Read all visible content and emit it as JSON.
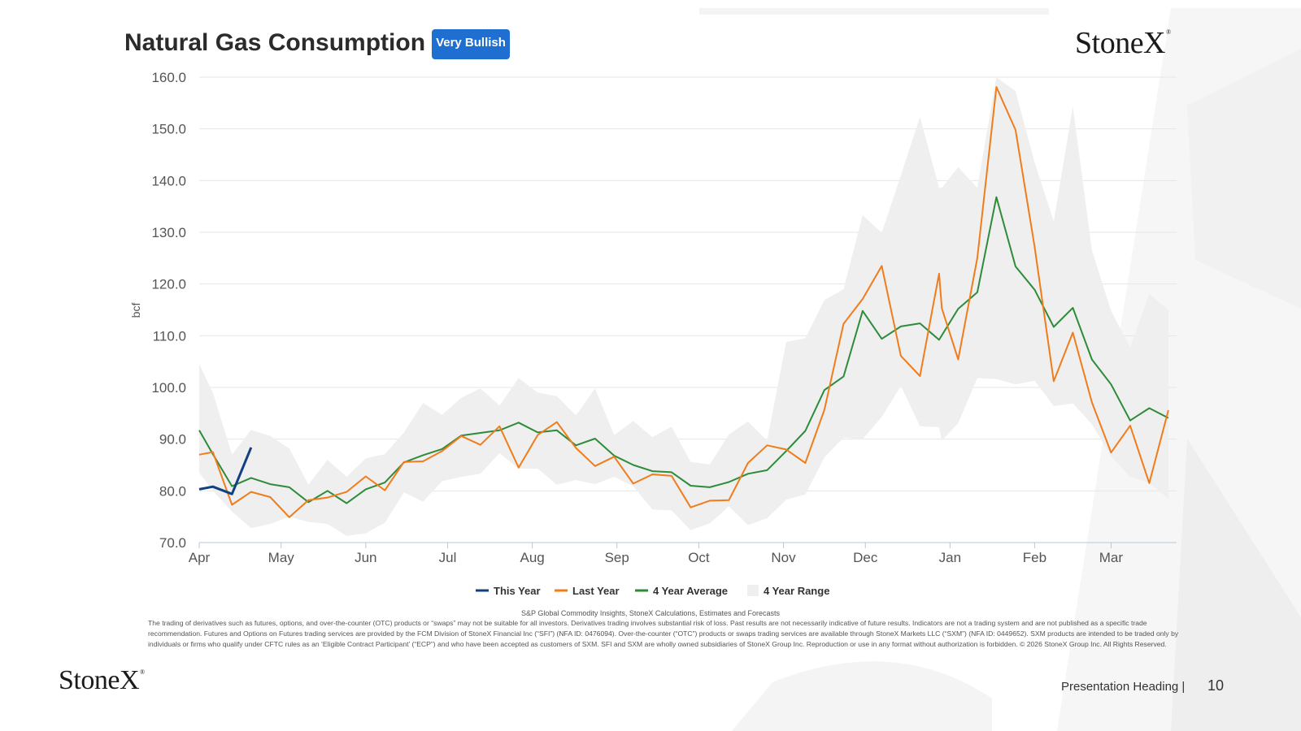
{
  "header": {
    "title": "Natural Gas Consumption",
    "badge": "Very Bullish",
    "logo": "StoneX",
    "logo_mark": "®"
  },
  "colors": {
    "this_year": "#123f80",
    "last_year": "#f07c1c",
    "avg": "#2e8b3a",
    "range": "#eeefee",
    "badge": "#1f6fd1"
  },
  "chart_data": {
    "type": "line",
    "ylabel": "bcf",
    "xlabel": "",
    "ylim": [
      70,
      160
    ],
    "yticks": [
      "70.0",
      "80.0",
      "90.0",
      "100.0",
      "110.0",
      "120.0",
      "130.0",
      "140.0",
      "150.0",
      "160.0"
    ],
    "x_domain": [
      "2025-04-01",
      "2026-03-25"
    ],
    "x_ticks": [
      {
        "label": "Apr",
        "date": "2025-04-01"
      },
      {
        "label": "May",
        "date": "2025-05-01"
      },
      {
        "label": "Jun",
        "date": "2025-06-01"
      },
      {
        "label": "Jul",
        "date": "2025-07-01"
      },
      {
        "label": "Aug",
        "date": "2025-08-01"
      },
      {
        "label": "Sep",
        "date": "2025-09-01"
      },
      {
        "label": "Oct",
        "date": "2025-10-01"
      },
      {
        "label": "Nov",
        "date": "2025-11-01"
      },
      {
        "label": "Dec",
        "date": "2025-12-01"
      },
      {
        "label": "Jan",
        "date": "2026-01-01"
      },
      {
        "label": "Feb",
        "date": "2026-02-01"
      },
      {
        "label": "Mar",
        "date": "2026-03-01"
      }
    ],
    "grid": true,
    "legend_position": "bottom",
    "series": [
      {
        "name": "This Year",
        "points": [
          [
            "2025-04-01",
            80.3
          ],
          [
            "2025-04-06",
            80.8
          ],
          [
            "2025-04-13",
            79.4
          ],
          [
            "2025-04-20",
            88.4
          ]
        ]
      },
      {
        "name": "Last Year",
        "points": [
          [
            "2025-04-01",
            87.0
          ],
          [
            "2025-04-06",
            87.5
          ],
          [
            "2025-04-13",
            77.3
          ],
          [
            "2025-04-20",
            79.8
          ],
          [
            "2025-04-27",
            78.8
          ],
          [
            "2025-05-04",
            74.9
          ],
          [
            "2025-05-11",
            78.2
          ],
          [
            "2025-05-18",
            78.7
          ],
          [
            "2025-05-25",
            79.8
          ],
          [
            "2025-06-01",
            82.8
          ],
          [
            "2025-06-08",
            80.1
          ],
          [
            "2025-06-15",
            85.6
          ],
          [
            "2025-06-22",
            85.7
          ],
          [
            "2025-06-29",
            87.7
          ],
          [
            "2025-07-06",
            90.6
          ],
          [
            "2025-07-13",
            88.9
          ],
          [
            "2025-07-20",
            92.5
          ],
          [
            "2025-07-27",
            84.5
          ],
          [
            "2025-08-03",
            90.8
          ],
          [
            "2025-08-10",
            93.3
          ],
          [
            "2025-08-17",
            88.3
          ],
          [
            "2025-08-24",
            84.8
          ],
          [
            "2025-08-31",
            86.6
          ],
          [
            "2025-09-07",
            81.4
          ],
          [
            "2025-09-14",
            83.2
          ],
          [
            "2025-09-21",
            82.9
          ],
          [
            "2025-09-28",
            76.8
          ],
          [
            "2025-10-05",
            78.1
          ],
          [
            "2025-10-12",
            78.2
          ],
          [
            "2025-10-19",
            85.4
          ],
          [
            "2025-10-26",
            88.8
          ],
          [
            "2025-11-02",
            88.0
          ],
          [
            "2025-11-09",
            85.4
          ],
          [
            "2025-11-16",
            95.7
          ],
          [
            "2025-11-23",
            112.3
          ],
          [
            "2025-11-30",
            117.1
          ],
          [
            "2025-12-07",
            123.5
          ],
          [
            "2025-12-14",
            106.1
          ],
          [
            "2025-12-21",
            102.2
          ],
          [
            "2025-12-28",
            122.0
          ],
          [
            "2025-12-29",
            115.3
          ],
          [
            "2026-01-04",
            105.4
          ],
          [
            "2026-01-11",
            125.0
          ],
          [
            "2026-01-18",
            158.1
          ],
          [
            "2026-01-25",
            149.8
          ],
          [
            "2026-02-01",
            127.2
          ],
          [
            "2026-02-08",
            101.2
          ],
          [
            "2026-02-15",
            110.6
          ],
          [
            "2026-02-22",
            97.1
          ],
          [
            "2026-03-01",
            87.4
          ],
          [
            "2026-03-08",
            92.6
          ],
          [
            "2026-03-15",
            81.5
          ],
          [
            "2026-03-22",
            95.6
          ]
        ]
      },
      {
        "name": "4 Year Average",
        "points": [
          [
            "2025-04-01",
            91.7
          ],
          [
            "2025-04-06",
            87.1
          ],
          [
            "2025-04-13",
            80.9
          ],
          [
            "2025-04-20",
            82.5
          ],
          [
            "2025-04-27",
            81.3
          ],
          [
            "2025-05-04",
            80.7
          ],
          [
            "2025-05-11",
            77.8
          ],
          [
            "2025-05-18",
            80.0
          ],
          [
            "2025-05-25",
            77.6
          ],
          [
            "2025-06-01",
            80.3
          ],
          [
            "2025-06-08",
            81.6
          ],
          [
            "2025-06-15",
            85.5
          ],
          [
            "2025-06-22",
            86.9
          ],
          [
            "2025-06-29",
            88.1
          ],
          [
            "2025-07-06",
            90.7
          ],
          [
            "2025-07-13",
            91.2
          ],
          [
            "2025-07-20",
            91.7
          ],
          [
            "2025-07-27",
            93.2
          ],
          [
            "2025-08-03",
            91.3
          ],
          [
            "2025-08-10",
            91.7
          ],
          [
            "2025-08-17",
            88.8
          ],
          [
            "2025-08-24",
            90.1
          ],
          [
            "2025-08-31",
            86.8
          ],
          [
            "2025-09-07",
            85.0
          ],
          [
            "2025-09-14",
            83.8
          ],
          [
            "2025-09-21",
            83.6
          ],
          [
            "2025-09-28",
            81.0
          ],
          [
            "2025-10-05",
            80.7
          ],
          [
            "2025-10-12",
            81.7
          ],
          [
            "2025-10-19",
            83.3
          ],
          [
            "2025-10-26",
            84.0
          ],
          [
            "2025-11-02",
            87.7
          ],
          [
            "2025-11-09",
            91.6
          ],
          [
            "2025-11-16",
            99.5
          ],
          [
            "2025-11-23",
            102.1
          ],
          [
            "2025-11-30",
            114.8
          ],
          [
            "2025-12-07",
            109.4
          ],
          [
            "2025-12-14",
            111.8
          ],
          [
            "2025-12-21",
            112.4
          ],
          [
            "2025-12-28",
            109.2
          ],
          [
            "2026-01-04",
            115.2
          ],
          [
            "2026-01-11",
            118.4
          ],
          [
            "2026-01-18",
            136.8
          ],
          [
            "2026-01-25",
            123.4
          ],
          [
            "2026-02-01",
            118.9
          ],
          [
            "2026-02-08",
            111.7
          ],
          [
            "2026-02-15",
            115.4
          ],
          [
            "2026-02-22",
            105.4
          ],
          [
            "2026-03-01",
            100.6
          ],
          [
            "2026-03-08",
            93.6
          ],
          [
            "2026-03-15",
            96.0
          ],
          [
            "2026-03-22",
            94.1
          ]
        ]
      }
    ],
    "range": {
      "name": "4 Year Range",
      "points": [
        [
          "2025-04-01",
          104.5,
          83.5
        ],
        [
          "2025-04-06",
          99.0,
          80.0
        ],
        [
          "2025-04-13",
          87.0,
          76.0
        ],
        [
          "2025-04-20",
          91.8,
          72.8
        ],
        [
          "2025-04-27",
          90.6,
          73.6
        ],
        [
          "2025-05-04",
          88.2,
          75.0
        ],
        [
          "2025-05-11",
          81.2,
          74.0
        ],
        [
          "2025-05-18",
          86.0,
          73.6
        ],
        [
          "2025-05-25",
          82.7,
          71.3
        ],
        [
          "2025-06-01",
          86.3,
          71.8
        ],
        [
          "2025-06-08",
          87.1,
          73.8
        ],
        [
          "2025-06-15",
          91.3,
          79.7
        ],
        [
          "2025-06-22",
          97.0,
          77.9
        ],
        [
          "2025-06-29",
          94.7,
          81.9
        ],
        [
          "2025-07-06",
          98.0,
          82.7
        ],
        [
          "2025-07-13",
          99.8,
          83.3
        ],
        [
          "2025-07-20",
          96.5,
          87.3
        ],
        [
          "2025-07-27",
          101.8,
          84.3
        ],
        [
          "2025-08-03",
          99.0,
          84.3
        ],
        [
          "2025-08-10",
          98.3,
          81.2
        ],
        [
          "2025-08-17",
          94.6,
          82.1
        ],
        [
          "2025-08-24",
          99.8,
          81.3
        ],
        [
          "2025-08-31",
          90.8,
          82.7
        ],
        [
          "2025-09-07",
          93.5,
          80.9
        ],
        [
          "2025-09-14",
          90.4,
          76.4
        ],
        [
          "2025-09-21",
          92.4,
          76.2
        ],
        [
          "2025-09-28",
          85.6,
          72.4
        ],
        [
          "2025-10-05",
          85.1,
          73.7
        ],
        [
          "2025-10-12",
          90.9,
          77.0
        ],
        [
          "2025-10-19",
          93.4,
          73.4
        ],
        [
          "2025-10-26",
          89.7,
          74.7
        ],
        [
          "2025-11-02",
          108.8,
          78.3
        ],
        [
          "2025-11-09",
          109.5,
          79.3
        ],
        [
          "2025-11-16",
          116.9,
          86.5
        ],
        [
          "2025-11-23",
          119.0,
          90.3
        ],
        [
          "2025-11-30",
          133.3,
          90.0
        ],
        [
          "2025-12-07",
          129.9,
          94.3
        ],
        [
          "2025-12-14",
          141.0,
          100.3
        ],
        [
          "2025-12-21",
          152.3,
          92.5
        ],
        [
          "2025-12-28",
          138.6,
          92.3
        ],
        [
          "2025-12-29",
          138.6,
          89.7
        ],
        [
          "2026-01-04",
          142.6,
          93.1
        ],
        [
          "2026-01-11",
          138.6,
          101.8
        ],
        [
          "2026-01-18",
          160.0,
          101.6
        ],
        [
          "2026-01-25",
          157.3,
          100.6
        ],
        [
          "2026-02-01",
          143.5,
          101.3
        ],
        [
          "2026-02-08",
          132.1,
          96.4
        ],
        [
          "2026-02-15",
          154.3,
          96.9
        ],
        [
          "2026-02-22",
          126.5,
          92.9
        ],
        [
          "2026-03-01",
          114.8,
          86.7
        ],
        [
          "2026-03-08",
          107.7,
          82.7
        ],
        [
          "2026-03-15",
          118.1,
          81.5
        ],
        [
          "2026-03-22",
          115.0,
          78.5
        ]
      ]
    }
  },
  "footer": {
    "source": "S&P Global Commodity Insights, StoneX Calculations, Estimates and Forecasts",
    "disclaimer": "The trading of derivatives such as futures, options, and over-the-counter (OTC) products or “swaps” may not be suitable for all investors. Derivatives trading involves substantial risk of loss. Past results are not necessarily indicative of future results. Indicators are not a trading system and are not published as a specific trade recommendation. Futures and Options on Futures trading services are provided by the FCM Division of StoneX Financial Inc (“SFI”) (NFA ID: 0476094). Over-the-counter (“OTC”) products or swaps trading services are available through StoneX Markets LLC (“SXM”) (NFA ID: 0449652). SXM products are intended to be traded only by individuals or firms who qualify under CFTC rules as an ‘Eligible Contract Participant’ (“ECP”) and who have been accepted as customers of SXM. SFI and SXM are wholly owned subsidiaries of StoneX Group Inc. Reproduction or use in any format without authorization is forbidden. © 2026 StoneX Group Inc. All Rights Reserved.",
    "heading": "Presentation Heading |",
    "page_number": "10"
  }
}
